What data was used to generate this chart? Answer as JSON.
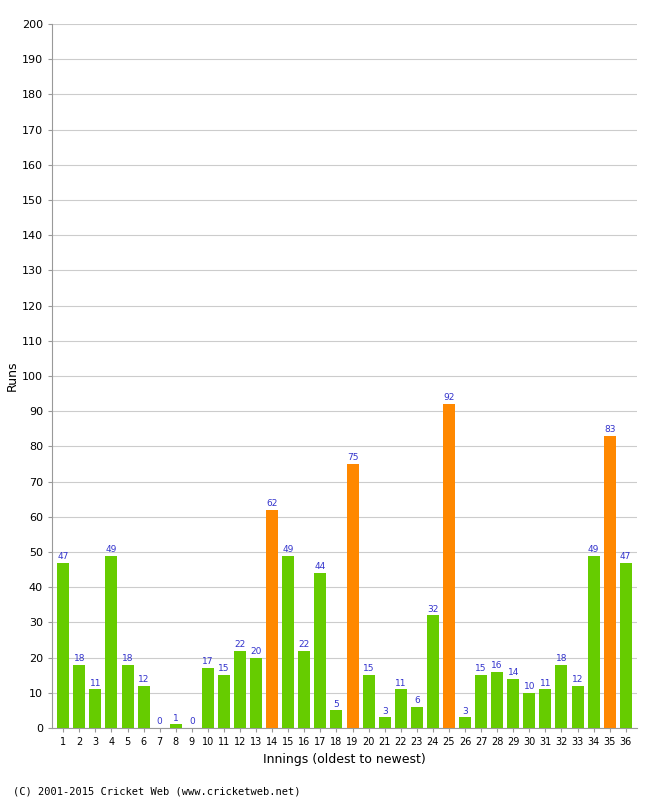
{
  "innings": [
    1,
    2,
    3,
    4,
    5,
    6,
    7,
    8,
    9,
    10,
    11,
    12,
    13,
    14,
    15,
    16,
    17,
    18,
    19,
    20,
    21,
    22,
    23,
    24,
    25,
    26,
    27,
    28,
    29,
    30,
    31,
    32,
    33,
    34,
    35,
    36
  ],
  "values": [
    47,
    18,
    11,
    49,
    18,
    12,
    0,
    1,
    0,
    17,
    15,
    22,
    20,
    62,
    49,
    22,
    44,
    5,
    75,
    15,
    3,
    11,
    6,
    32,
    92,
    3,
    15,
    16,
    14,
    10,
    11,
    18,
    12,
    49,
    83,
    47
  ],
  "colors": [
    "#66cc00",
    "#66cc00",
    "#66cc00",
    "#66cc00",
    "#66cc00",
    "#66cc00",
    "#66cc00",
    "#66cc00",
    "#66cc00",
    "#66cc00",
    "#66cc00",
    "#66cc00",
    "#66cc00",
    "#ff8800",
    "#66cc00",
    "#66cc00",
    "#66cc00",
    "#66cc00",
    "#ff8800",
    "#66cc00",
    "#66cc00",
    "#66cc00",
    "#66cc00",
    "#66cc00",
    "#ff8800",
    "#66cc00",
    "#66cc00",
    "#66cc00",
    "#66cc00",
    "#66cc00",
    "#66cc00",
    "#66cc00",
    "#66cc00",
    "#66cc00",
    "#ff8800",
    "#66cc00"
  ],
  "xlabel": "Innings (oldest to newest)",
  "ylabel": "Runs",
  "ylim": [
    0,
    200
  ],
  "yticks": [
    0,
    10,
    20,
    30,
    40,
    50,
    60,
    70,
    80,
    90,
    100,
    110,
    120,
    130,
    140,
    150,
    160,
    170,
    180,
    190,
    200
  ],
  "bg_color": "#ffffff",
  "grid_color": "#cccccc",
  "label_color": "#3333cc",
  "footer": "(C) 2001-2015 Cricket Web (www.cricketweb.net)"
}
